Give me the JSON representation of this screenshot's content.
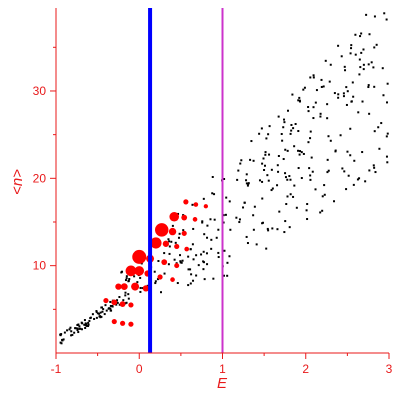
{
  "chart_data": {
    "type": "scatter",
    "xlabel": "E",
    "ylabel": "<n>",
    "xlim": [
      -1,
      3
    ],
    "ylim": [
      0,
      39.5
    ],
    "x_ticks": [
      -1,
      0,
      1,
      2,
      3
    ],
    "x_tick_labels": [
      "-1",
      "0",
      "1",
      "2",
      "3"
    ],
    "y_ticks": [
      10,
      20,
      30
    ],
    "y_tick_labels": [
      "10",
      "20",
      "30"
    ],
    "grid": false,
    "colors": {
      "axis": "#e8191a",
      "small_points": "#000000",
      "weighted_points": "#ff0000",
      "line_blue": "#0000ff",
      "line_magenta": "#cc33cc"
    },
    "vertical_lines": [
      {
        "x": 0.13,
        "color": "#0000ff"
      },
      {
        "x": 1.0,
        "color": "#cc33cc"
      }
    ],
    "weighted_points": [
      {
        "x": -0.4,
        "y": 6.0,
        "w": 0.2
      },
      {
        "x": -0.3,
        "y": 5.8,
        "w": 0.25
      },
      {
        "x": -0.2,
        "y": 5.6,
        "w": 0.25
      },
      {
        "x": -0.1,
        "y": 5.5,
        "w": 0.2
      },
      {
        "x": -0.3,
        "y": 3.6,
        "w": 0.2
      },
      {
        "x": -0.2,
        "y": 3.4,
        "w": 0.2
      },
      {
        "x": -0.1,
        "y": 3.3,
        "w": 0.2
      },
      {
        "x": -0.25,
        "y": 7.6,
        "w": 0.3
      },
      {
        "x": -0.18,
        "y": 7.6,
        "w": 0.35
      },
      {
        "x": -0.05,
        "y": 7.6,
        "w": 0.45
      },
      {
        "x": 0.08,
        "y": 7.4,
        "w": 0.3
      },
      {
        "x": -0.1,
        "y": 9.4,
        "w": 0.7
      },
      {
        "x": 0.0,
        "y": 9.4,
        "w": 0.6
      },
      {
        "x": 0.1,
        "y": 9.1,
        "w": 0.3
      },
      {
        "x": 0.25,
        "y": 8.7,
        "w": 0.2
      },
      {
        "x": 0.4,
        "y": 8.4,
        "w": 0.15
      },
      {
        "x": 0.0,
        "y": 11.0,
        "w": 1.0
      },
      {
        "x": 0.13,
        "y": 10.8,
        "w": 0.45
      },
      {
        "x": 0.3,
        "y": 10.4,
        "w": 0.25
      },
      {
        "x": 0.45,
        "y": 10.0,
        "w": 0.18
      },
      {
        "x": 0.2,
        "y": 12.6,
        "w": 0.75
      },
      {
        "x": 0.32,
        "y": 12.5,
        "w": 0.3
      },
      {
        "x": 0.45,
        "y": 12.2,
        "w": 0.2
      },
      {
        "x": 0.57,
        "y": 11.9,
        "w": 0.15
      },
      {
        "x": 0.27,
        "y": 14.1,
        "w": 0.95
      },
      {
        "x": 0.4,
        "y": 13.9,
        "w": 0.4
      },
      {
        "x": 0.54,
        "y": 13.7,
        "w": 0.2
      },
      {
        "x": 0.42,
        "y": 15.6,
        "w": 0.6
      },
      {
        "x": 0.54,
        "y": 15.5,
        "w": 0.25
      },
      {
        "x": 0.67,
        "y": 15.3,
        "w": 0.15
      },
      {
        "x": 0.56,
        "y": 17.3,
        "w": 0.2
      },
      {
        "x": 0.68,
        "y": 17.0,
        "w": 0.15
      },
      {
        "x": 0.8,
        "y": 16.8,
        "w": 0.12
      }
    ]
  }
}
